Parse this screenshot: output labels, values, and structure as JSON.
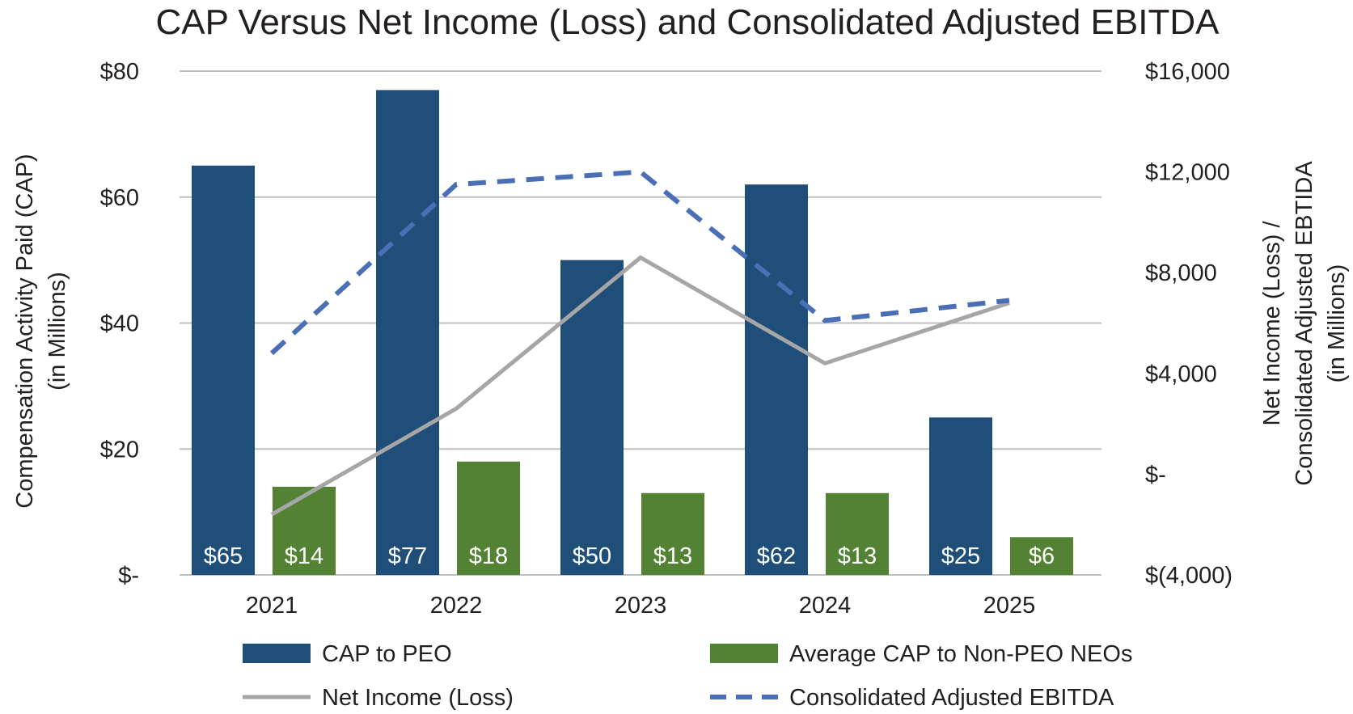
{
  "chart_data": {
    "type": "bar",
    "title": "CAP Versus Net Income (Loss) and Consolidated Adjusted EBITDA",
    "categories": [
      "2021",
      "2022",
      "2023",
      "2024",
      "2025"
    ],
    "y_left": {
      "label_lines": [
        "Compensation Activity Paid (CAP)",
        "(in Millions)"
      ],
      "ylim": [
        0,
        80
      ],
      "ticks": [
        0,
        20,
        40,
        60,
        80
      ],
      "tick_labels": [
        "$-",
        "$20",
        "$40",
        "$60",
        "$80"
      ]
    },
    "y_right": {
      "label_lines": [
        "Net Income (Loss) /",
        "Consolidated Adjusted EBTIDA",
        "(in Millions)"
      ],
      "ylim": [
        -4000,
        16000
      ],
      "ticks": [
        -4000,
        0,
        4000,
        8000,
        12000,
        16000
      ],
      "tick_labels": [
        "$(4,000)",
        "$-",
        "$4,000",
        "$8,000",
        "$12,000",
        "$16,000"
      ]
    },
    "grid": true,
    "legend_position": "bottom",
    "series": [
      {
        "name": "CAP to PEO",
        "kind": "bar",
        "axis": "left",
        "color": "#1f4e79",
        "values": [
          65,
          77,
          50,
          62,
          25
        ],
        "labels": [
          "$65",
          "$77",
          "$50",
          "$62",
          "$25"
        ]
      },
      {
        "name": "Average CAP to Non-PEO NEOs",
        "kind": "bar",
        "axis": "left",
        "color": "#548235",
        "values": [
          14,
          18,
          13,
          13,
          6
        ],
        "labels": [
          "$14",
          "$18",
          "$13",
          "$13",
          "$6"
        ]
      },
      {
        "name": "Net Income (Loss)",
        "kind": "line",
        "axis": "right",
        "color": "#a6a6a6",
        "dashed": false,
        "values": [
          -1600,
          2600,
          8600,
          4400,
          6800
        ]
      },
      {
        "name": "Consolidated Adjusted EBITDA",
        "kind": "line",
        "axis": "right",
        "color": "#4a6fb5",
        "dashed": true,
        "values": [
          4800,
          11500,
          12000,
          6100,
          6900
        ]
      }
    ]
  }
}
